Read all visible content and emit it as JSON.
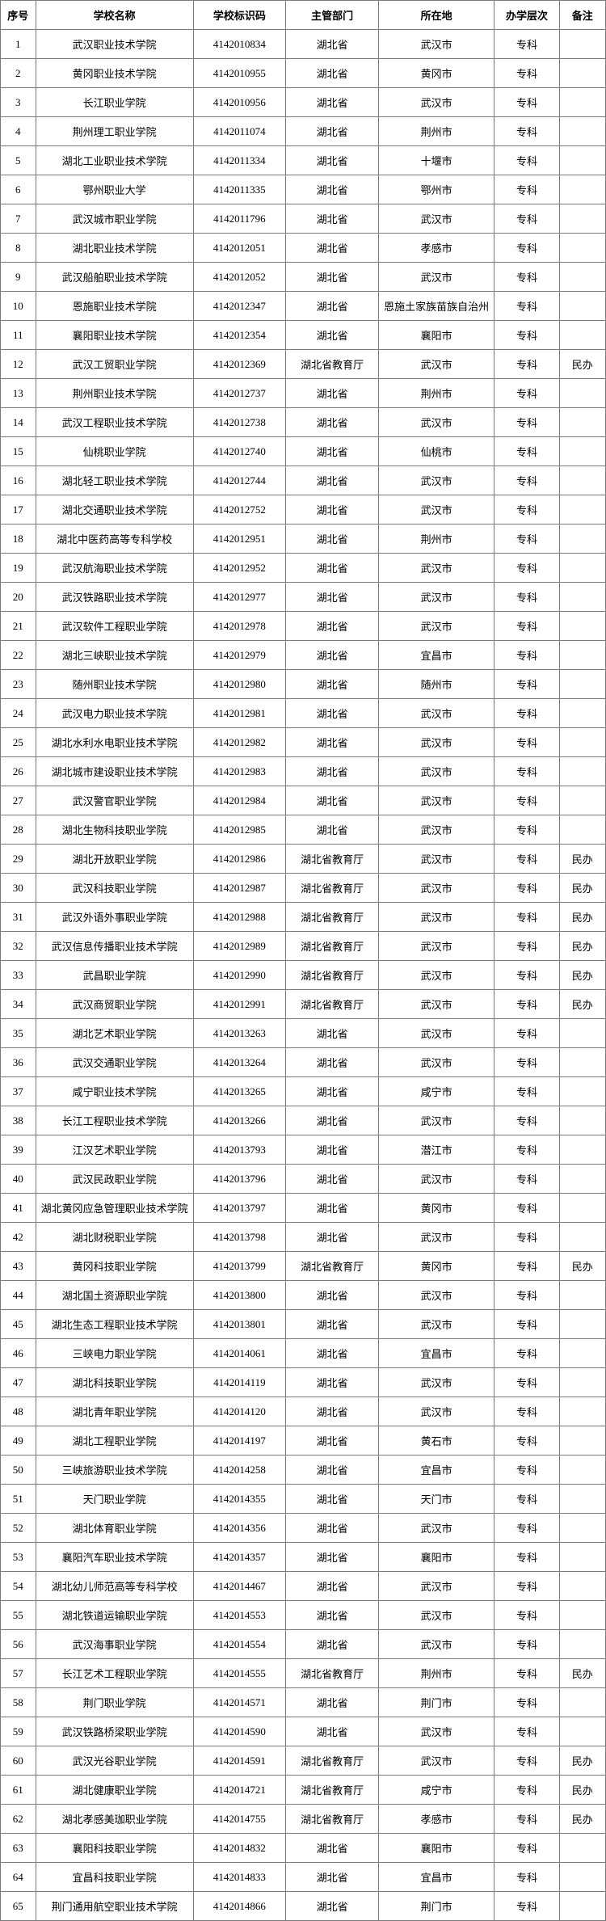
{
  "columns": [
    {
      "key": "seq",
      "label": "序号",
      "class": "col-seq"
    },
    {
      "key": "name",
      "label": "学校名称",
      "class": "col-name"
    },
    {
      "key": "code",
      "label": "学校标识码",
      "class": "col-code"
    },
    {
      "key": "dept",
      "label": "主管部门",
      "class": "col-dept"
    },
    {
      "key": "loc",
      "label": "所在地",
      "class": "col-loc"
    },
    {
      "key": "level",
      "label": "办学层次",
      "class": "col-level"
    },
    {
      "key": "note",
      "label": "备注",
      "class": "col-note"
    }
  ],
  "rows": [
    {
      "seq": "1",
      "name": "武汉职业技术学院",
      "code": "4142010834",
      "dept": "湖北省",
      "loc": "武汉市",
      "level": "专科",
      "note": ""
    },
    {
      "seq": "2",
      "name": "黄冈职业技术学院",
      "code": "4142010955",
      "dept": "湖北省",
      "loc": "黄冈市",
      "level": "专科",
      "note": ""
    },
    {
      "seq": "3",
      "name": "长江职业学院",
      "code": "4142010956",
      "dept": "湖北省",
      "loc": "武汉市",
      "level": "专科",
      "note": ""
    },
    {
      "seq": "4",
      "name": "荆州理工职业学院",
      "code": "4142011074",
      "dept": "湖北省",
      "loc": "荆州市",
      "level": "专科",
      "note": ""
    },
    {
      "seq": "5",
      "name": "湖北工业职业技术学院",
      "code": "4142011334",
      "dept": "湖北省",
      "loc": "十堰市",
      "level": "专科",
      "note": ""
    },
    {
      "seq": "6",
      "name": "鄂州职业大学",
      "code": "4142011335",
      "dept": "湖北省",
      "loc": "鄂州市",
      "level": "专科",
      "note": ""
    },
    {
      "seq": "7",
      "name": "武汉城市职业学院",
      "code": "4142011796",
      "dept": "湖北省",
      "loc": "武汉市",
      "level": "专科",
      "note": ""
    },
    {
      "seq": "8",
      "name": "湖北职业技术学院",
      "code": "4142012051",
      "dept": "湖北省",
      "loc": "孝感市",
      "level": "专科",
      "note": ""
    },
    {
      "seq": "9",
      "name": "武汉船舶职业技术学院",
      "code": "4142012052",
      "dept": "湖北省",
      "loc": "武汉市",
      "level": "专科",
      "note": ""
    },
    {
      "seq": "10",
      "name": "恩施职业技术学院",
      "code": "4142012347",
      "dept": "湖北省",
      "loc": "恩施土家族苗族自治州",
      "level": "专科",
      "note": ""
    },
    {
      "seq": "11",
      "name": "襄阳职业技术学院",
      "code": "4142012354",
      "dept": "湖北省",
      "loc": "襄阳市",
      "level": "专科",
      "note": ""
    },
    {
      "seq": "12",
      "name": "武汉工贸职业学院",
      "code": "4142012369",
      "dept": "湖北省教育厅",
      "loc": "武汉市",
      "level": "专科",
      "note": "民办"
    },
    {
      "seq": "13",
      "name": "荆州职业技术学院",
      "code": "4142012737",
      "dept": "湖北省",
      "loc": "荆州市",
      "level": "专科",
      "note": ""
    },
    {
      "seq": "14",
      "name": "武汉工程职业技术学院",
      "code": "4142012738",
      "dept": "湖北省",
      "loc": "武汉市",
      "level": "专科",
      "note": ""
    },
    {
      "seq": "15",
      "name": "仙桃职业学院",
      "code": "4142012740",
      "dept": "湖北省",
      "loc": "仙桃市",
      "level": "专科",
      "note": ""
    },
    {
      "seq": "16",
      "name": "湖北轻工职业技术学院",
      "code": "4142012744",
      "dept": "湖北省",
      "loc": "武汉市",
      "level": "专科",
      "note": ""
    },
    {
      "seq": "17",
      "name": "湖北交通职业技术学院",
      "code": "4142012752",
      "dept": "湖北省",
      "loc": "武汉市",
      "level": "专科",
      "note": ""
    },
    {
      "seq": "18",
      "name": "湖北中医药高等专科学校",
      "code": "4142012951",
      "dept": "湖北省",
      "loc": "荆州市",
      "level": "专科",
      "note": ""
    },
    {
      "seq": "19",
      "name": "武汉航海职业技术学院",
      "code": "4142012952",
      "dept": "湖北省",
      "loc": "武汉市",
      "level": "专科",
      "note": ""
    },
    {
      "seq": "20",
      "name": "武汉铁路职业技术学院",
      "code": "4142012977",
      "dept": "湖北省",
      "loc": "武汉市",
      "level": "专科",
      "note": ""
    },
    {
      "seq": "21",
      "name": "武汉软件工程职业学院",
      "code": "4142012978",
      "dept": "湖北省",
      "loc": "武汉市",
      "level": "专科",
      "note": ""
    },
    {
      "seq": "22",
      "name": "湖北三峡职业技术学院",
      "code": "4142012979",
      "dept": "湖北省",
      "loc": "宜昌市",
      "level": "专科",
      "note": ""
    },
    {
      "seq": "23",
      "name": "随州职业技术学院",
      "code": "4142012980",
      "dept": "湖北省",
      "loc": "随州市",
      "level": "专科",
      "note": ""
    },
    {
      "seq": "24",
      "name": "武汉电力职业技术学院",
      "code": "4142012981",
      "dept": "湖北省",
      "loc": "武汉市",
      "level": "专科",
      "note": ""
    },
    {
      "seq": "25",
      "name": "湖北水利水电职业技术学院",
      "code": "4142012982",
      "dept": "湖北省",
      "loc": "武汉市",
      "level": "专科",
      "note": ""
    },
    {
      "seq": "26",
      "name": "湖北城市建设职业技术学院",
      "code": "4142012983",
      "dept": "湖北省",
      "loc": "武汉市",
      "level": "专科",
      "note": ""
    },
    {
      "seq": "27",
      "name": "武汉警官职业学院",
      "code": "4142012984",
      "dept": "湖北省",
      "loc": "武汉市",
      "level": "专科",
      "note": ""
    },
    {
      "seq": "28",
      "name": "湖北生物科技职业学院",
      "code": "4142012985",
      "dept": "湖北省",
      "loc": "武汉市",
      "level": "专科",
      "note": ""
    },
    {
      "seq": "29",
      "name": "湖北开放职业学院",
      "code": "4142012986",
      "dept": "湖北省教育厅",
      "loc": "武汉市",
      "level": "专科",
      "note": "民办"
    },
    {
      "seq": "30",
      "name": "武汉科技职业学院",
      "code": "4142012987",
      "dept": "湖北省教育厅",
      "loc": "武汉市",
      "level": "专科",
      "note": "民办"
    },
    {
      "seq": "31",
      "name": "武汉外语外事职业学院",
      "code": "4142012988",
      "dept": "湖北省教育厅",
      "loc": "武汉市",
      "level": "专科",
      "note": "民办"
    },
    {
      "seq": "32",
      "name": "武汉信息传播职业技术学院",
      "code": "4142012989",
      "dept": "湖北省教育厅",
      "loc": "武汉市",
      "level": "专科",
      "note": "民办"
    },
    {
      "seq": "33",
      "name": "武昌职业学院",
      "code": "4142012990",
      "dept": "湖北省教育厅",
      "loc": "武汉市",
      "level": "专科",
      "note": "民办"
    },
    {
      "seq": "34",
      "name": "武汉商贸职业学院",
      "code": "4142012991",
      "dept": "湖北省教育厅",
      "loc": "武汉市",
      "level": "专科",
      "note": "民办"
    },
    {
      "seq": "35",
      "name": "湖北艺术职业学院",
      "code": "4142013263",
      "dept": "湖北省",
      "loc": "武汉市",
      "level": "专科",
      "note": ""
    },
    {
      "seq": "36",
      "name": "武汉交通职业学院",
      "code": "4142013264",
      "dept": "湖北省",
      "loc": "武汉市",
      "level": "专科",
      "note": ""
    },
    {
      "seq": "37",
      "name": "咸宁职业技术学院",
      "code": "4142013265",
      "dept": "湖北省",
      "loc": "咸宁市",
      "level": "专科",
      "note": ""
    },
    {
      "seq": "38",
      "name": "长江工程职业技术学院",
      "code": "4142013266",
      "dept": "湖北省",
      "loc": "武汉市",
      "level": "专科",
      "note": ""
    },
    {
      "seq": "39",
      "name": "江汉艺术职业学院",
      "code": "4142013793",
      "dept": "湖北省",
      "loc": "潜江市",
      "level": "专科",
      "note": ""
    },
    {
      "seq": "40",
      "name": "武汉民政职业学院",
      "code": "4142013796",
      "dept": "湖北省",
      "loc": "武汉市",
      "level": "专科",
      "note": ""
    },
    {
      "seq": "41",
      "name": "湖北黄冈应急管理职业技术学院",
      "code": "4142013797",
      "dept": "湖北省",
      "loc": "黄冈市",
      "level": "专科",
      "note": ""
    },
    {
      "seq": "42",
      "name": "湖北财税职业学院",
      "code": "4142013798",
      "dept": "湖北省",
      "loc": "武汉市",
      "level": "专科",
      "note": ""
    },
    {
      "seq": "43",
      "name": "黄冈科技职业学院",
      "code": "4142013799",
      "dept": "湖北省教育厅",
      "loc": "黄冈市",
      "level": "专科",
      "note": "民办"
    },
    {
      "seq": "44",
      "name": "湖北国土资源职业学院",
      "code": "4142013800",
      "dept": "湖北省",
      "loc": "武汉市",
      "level": "专科",
      "note": ""
    },
    {
      "seq": "45",
      "name": "湖北生态工程职业技术学院",
      "code": "4142013801",
      "dept": "湖北省",
      "loc": "武汉市",
      "level": "专科",
      "note": ""
    },
    {
      "seq": "46",
      "name": "三峡电力职业学院",
      "code": "4142014061",
      "dept": "湖北省",
      "loc": "宜昌市",
      "level": "专科",
      "note": ""
    },
    {
      "seq": "47",
      "name": "湖北科技职业学院",
      "code": "4142014119",
      "dept": "湖北省",
      "loc": "武汉市",
      "level": "专科",
      "note": ""
    },
    {
      "seq": "48",
      "name": "湖北青年职业学院",
      "code": "4142014120",
      "dept": "湖北省",
      "loc": "武汉市",
      "level": "专科",
      "note": ""
    },
    {
      "seq": "49",
      "name": "湖北工程职业学院",
      "code": "4142014197",
      "dept": "湖北省",
      "loc": "黄石市",
      "level": "专科",
      "note": ""
    },
    {
      "seq": "50",
      "name": "三峡旅游职业技术学院",
      "code": "4142014258",
      "dept": "湖北省",
      "loc": "宜昌市",
      "level": "专科",
      "note": ""
    },
    {
      "seq": "51",
      "name": "天门职业学院",
      "code": "4142014355",
      "dept": "湖北省",
      "loc": "天门市",
      "level": "专科",
      "note": ""
    },
    {
      "seq": "52",
      "name": "湖北体育职业学院",
      "code": "4142014356",
      "dept": "湖北省",
      "loc": "武汉市",
      "level": "专科",
      "note": ""
    },
    {
      "seq": "53",
      "name": "襄阳汽车职业技术学院",
      "code": "4142014357",
      "dept": "湖北省",
      "loc": "襄阳市",
      "level": "专科",
      "note": ""
    },
    {
      "seq": "54",
      "name": "湖北幼儿师范高等专科学校",
      "code": "4142014467",
      "dept": "湖北省",
      "loc": "武汉市",
      "level": "专科",
      "note": ""
    },
    {
      "seq": "55",
      "name": "湖北铁道运输职业学院",
      "code": "4142014553",
      "dept": "湖北省",
      "loc": "武汉市",
      "level": "专科",
      "note": ""
    },
    {
      "seq": "56",
      "name": "武汉海事职业学院",
      "code": "4142014554",
      "dept": "湖北省",
      "loc": "武汉市",
      "level": "专科",
      "note": ""
    },
    {
      "seq": "57",
      "name": "长江艺术工程职业学院",
      "code": "4142014555",
      "dept": "湖北省教育厅",
      "loc": "荆州市",
      "level": "专科",
      "note": "民办"
    },
    {
      "seq": "58",
      "name": "荆门职业学院",
      "code": "4142014571",
      "dept": "湖北省",
      "loc": "荆门市",
      "level": "专科",
      "note": ""
    },
    {
      "seq": "59",
      "name": "武汉铁路桥梁职业学院",
      "code": "4142014590",
      "dept": "湖北省",
      "loc": "武汉市",
      "level": "专科",
      "note": ""
    },
    {
      "seq": "60",
      "name": "武汉光谷职业学院",
      "code": "4142014591",
      "dept": "湖北省教育厅",
      "loc": "武汉市",
      "level": "专科",
      "note": "民办"
    },
    {
      "seq": "61",
      "name": "湖北健康职业学院",
      "code": "4142014721",
      "dept": "湖北省教育厅",
      "loc": "咸宁市",
      "level": "专科",
      "note": "民办"
    },
    {
      "seq": "62",
      "name": "湖北孝感美珈职业学院",
      "code": "4142014755",
      "dept": "湖北省教育厅",
      "loc": "孝感市",
      "level": "专科",
      "note": "民办"
    },
    {
      "seq": "63",
      "name": "襄阳科技职业学院",
      "code": "4142014832",
      "dept": "湖北省",
      "loc": "襄阳市",
      "level": "专科",
      "note": ""
    },
    {
      "seq": "64",
      "name": "宜昌科技职业学院",
      "code": "4142014833",
      "dept": "湖北省",
      "loc": "宜昌市",
      "level": "专科",
      "note": ""
    },
    {
      "seq": "65",
      "name": "荆门通用航空职业技术学院",
      "code": "4142014866",
      "dept": "湖北省",
      "loc": "荆门市",
      "level": "专科",
      "note": ""
    }
  ]
}
